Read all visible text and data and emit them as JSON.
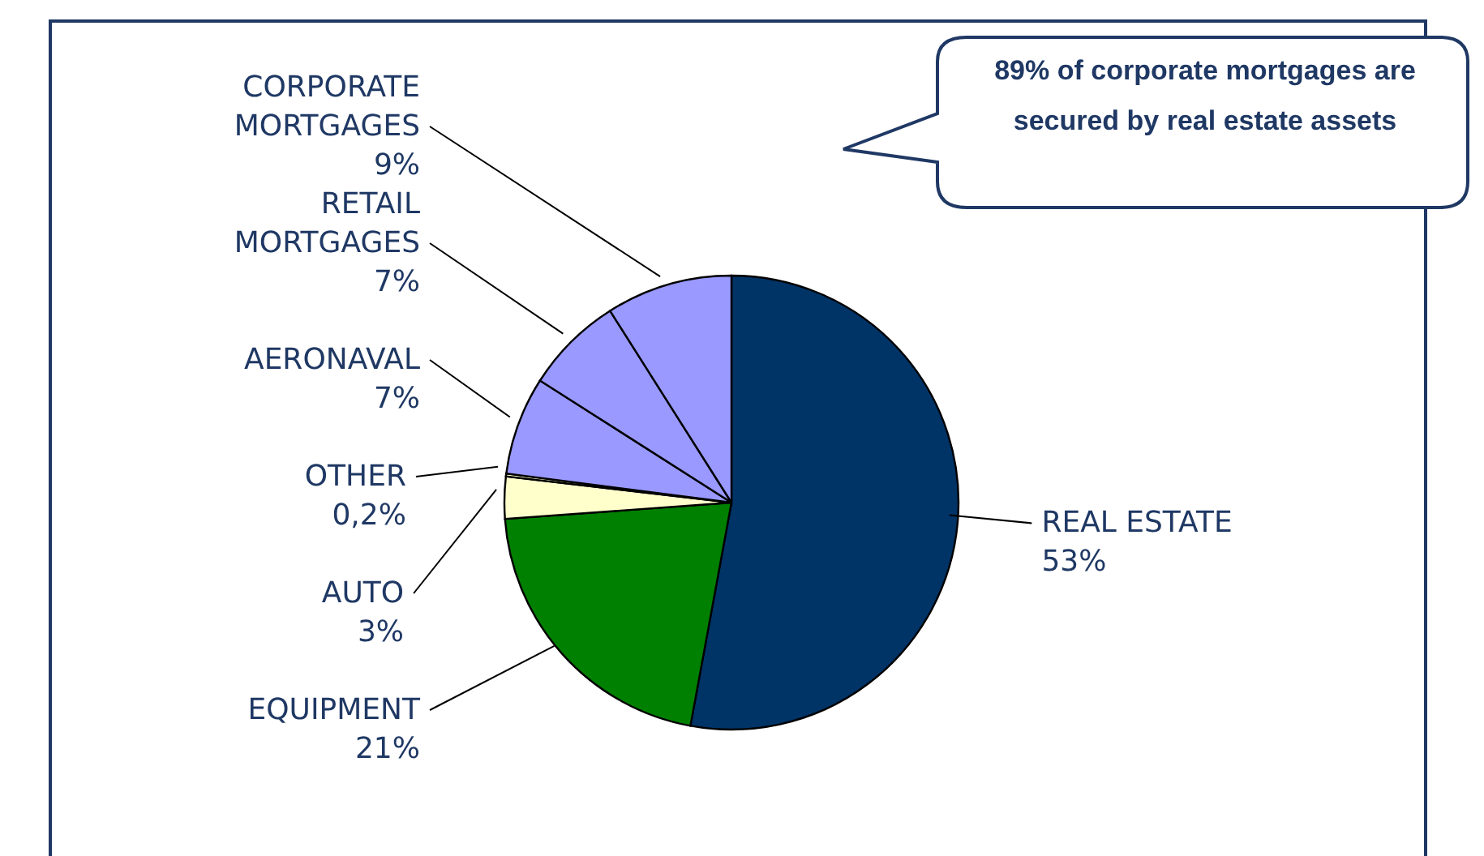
{
  "chart_data": {
    "type": "pie",
    "categories": [
      "REAL ESTATE",
      "EQUIPMENT",
      "AUTO",
      "OTHER",
      "AERONAVAL",
      "RETAIL MORTGAGES",
      "CORPORATE MORTGAGES"
    ],
    "values": [
      53,
      21,
      3,
      0.2,
      7,
      7,
      9
    ],
    "value_labels": [
      "53%",
      "21%",
      "3%",
      "0,2%",
      "7%",
      "7%",
      "9%"
    ],
    "colors": [
      "#003366",
      "#008000",
      "#ffffcc",
      "#ffffcc",
      "#9999ff",
      "#9999ff",
      "#9999ff"
    ],
    "annotations": [
      "89% of corporate mortgages are secured by real estate assets"
    ],
    "legend": false
  }
}
